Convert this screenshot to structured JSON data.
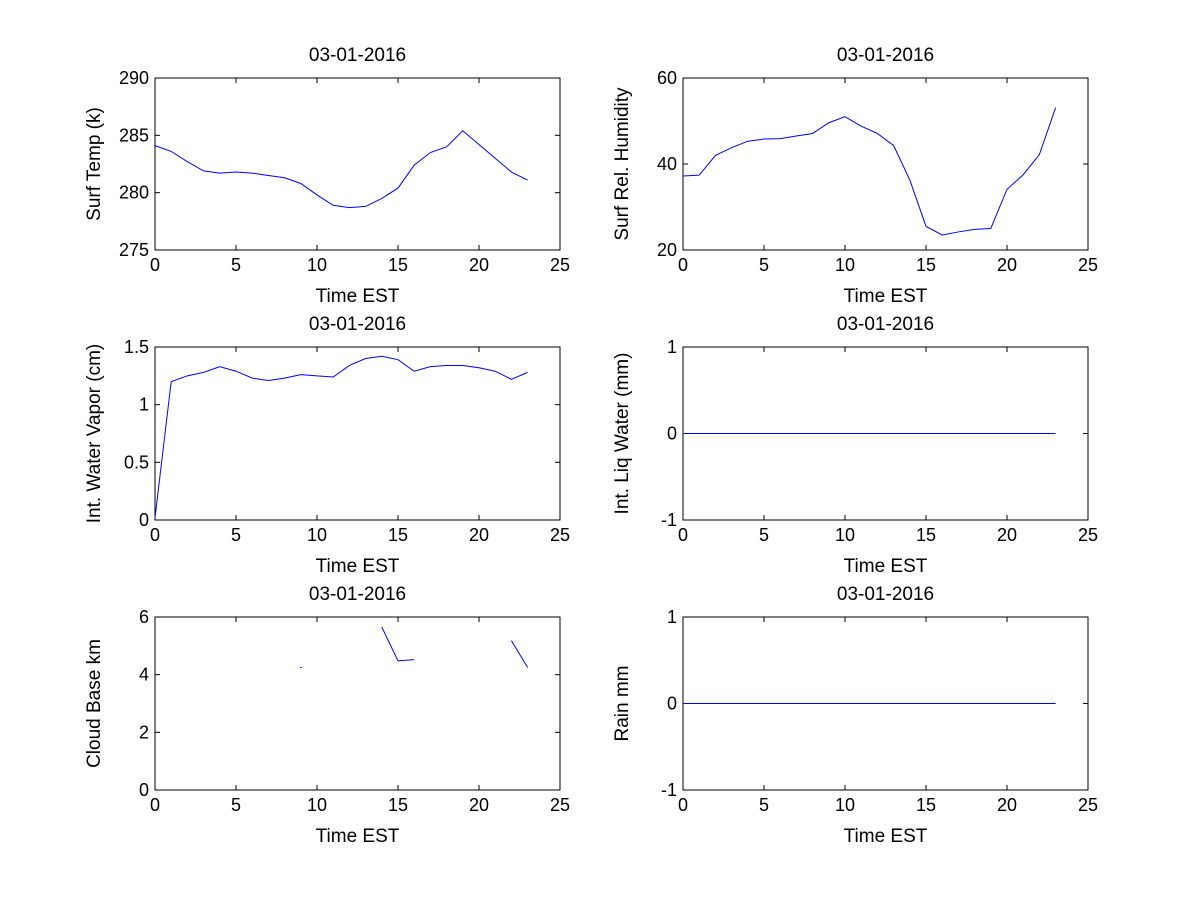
{
  "colors": {
    "line": "#0000ff",
    "axis": "#000000",
    "background": "#ffffff"
  },
  "chart_data": [
    {
      "type": "line",
      "title": "03-01-2016",
      "xlabel": "Time EST",
      "ylabel": "Surf Temp (k)",
      "xlim": [
        0,
        25
      ],
      "ylim": [
        275,
        290
      ],
      "xticks": [
        0,
        5,
        10,
        15,
        20,
        25
      ],
      "yticks": [
        275,
        280,
        285,
        290
      ],
      "grid": false,
      "series": [
        {
          "name": "Surf Temp",
          "x": [
            0,
            1,
            2,
            3,
            4,
            5,
            6,
            7,
            8,
            9,
            10,
            11,
            12,
            13,
            14,
            15,
            16,
            17,
            18,
            19,
            20,
            21,
            22,
            23
          ],
          "values": [
            284.1,
            283.6,
            282.7,
            281.9,
            281.7,
            281.8,
            281.7,
            281.5,
            281.3,
            280.8,
            279.8,
            278.9,
            278.7,
            278.8,
            279.5,
            280.4,
            282.4,
            283.5,
            284.0,
            285.4,
            284.2,
            283.0,
            281.8,
            281.1
          ]
        }
      ]
    },
    {
      "type": "line",
      "title": "03-01-2016",
      "xlabel": "Time EST",
      "ylabel": "Surf Rel. Humidity",
      "xlim": [
        0,
        25
      ],
      "ylim": [
        20,
        60
      ],
      "xticks": [
        0,
        5,
        10,
        15,
        20,
        25
      ],
      "yticks": [
        20,
        40,
        60
      ],
      "grid": false,
      "series": [
        {
          "name": "Surf Rel. Humidity",
          "x": [
            0,
            1,
            2,
            3,
            4,
            5,
            6,
            7,
            8,
            9,
            10,
            11,
            12,
            13,
            14,
            15,
            16,
            17,
            18,
            19,
            20,
            21,
            22,
            23
          ],
          "values": [
            37.2,
            37.4,
            42.0,
            43.8,
            45.3,
            45.8,
            45.9,
            46.5,
            47.1,
            49.6,
            51.0,
            48.8,
            47.1,
            44.3,
            36.3,
            25.5,
            23.5,
            24.2,
            24.8,
            25.0,
            34.1,
            37.5,
            42.2,
            53.1
          ]
        }
      ]
    },
    {
      "type": "line",
      "title": "03-01-2016",
      "xlabel": "Time EST",
      "ylabel": "Int. Water Vapor (cm)",
      "xlim": [
        0,
        25
      ],
      "ylim": [
        0,
        1.5
      ],
      "xticks": [
        0,
        5,
        10,
        15,
        20,
        25
      ],
      "yticks": [
        0,
        0.5,
        1,
        1.5
      ],
      "grid": false,
      "series": [
        {
          "name": "Int. Water Vapor",
          "x": [
            0,
            1,
            2,
            3,
            4,
            5,
            6,
            7,
            8,
            9,
            10,
            11,
            12,
            13,
            14,
            15,
            16,
            17,
            18,
            19,
            20,
            21,
            22,
            23
          ],
          "values": [
            0.02,
            1.2,
            1.25,
            1.28,
            1.33,
            1.29,
            1.23,
            1.21,
            1.23,
            1.26,
            1.25,
            1.24,
            1.34,
            1.4,
            1.42,
            1.39,
            1.29,
            1.33,
            1.34,
            1.34,
            1.32,
            1.29,
            1.22,
            1.28
          ]
        }
      ]
    },
    {
      "type": "line",
      "title": "03-01-2016",
      "xlabel": "Time EST",
      "ylabel": "Int. Liq Water (mm)",
      "xlim": [
        0,
        25
      ],
      "ylim": [
        -1,
        1
      ],
      "xticks": [
        0,
        5,
        10,
        15,
        20,
        25
      ],
      "yticks": [
        -1,
        0,
        1
      ],
      "grid": false,
      "series": [
        {
          "name": "Int. Liq Water",
          "x": [
            0,
            1,
            2,
            3,
            4,
            5,
            6,
            7,
            8,
            9,
            10,
            11,
            12,
            13,
            14,
            15,
            16,
            17,
            18,
            19,
            20,
            21,
            22,
            23
          ],
          "values": [
            0,
            0,
            0,
            0,
            0,
            0,
            0,
            0,
            0,
            0,
            0,
            0,
            0,
            0,
            0,
            0,
            0,
            0,
            0,
            0,
            0,
            0,
            0,
            0
          ]
        }
      ]
    },
    {
      "type": "line",
      "title": "03-01-2016",
      "xlabel": "Time EST",
      "ylabel": "Cloud Base km",
      "xlim": [
        0,
        25
      ],
      "ylim": [
        0,
        6
      ],
      "xticks": [
        0,
        5,
        10,
        15,
        20,
        25
      ],
      "yticks": [
        0,
        2,
        4,
        6
      ],
      "grid": false,
      "series": [
        {
          "name": "Cloud Base",
          "x": [
            0,
            1,
            2,
            3,
            4,
            5,
            6,
            7,
            8,
            9,
            10,
            11,
            12,
            13,
            14,
            15,
            16,
            17,
            18,
            19,
            20,
            21,
            22,
            23
          ],
          "values": [
            null,
            null,
            null,
            null,
            null,
            null,
            null,
            null,
            null,
            4.25,
            null,
            null,
            null,
            null,
            5.65,
            4.48,
            4.52,
            null,
            null,
            null,
            null,
            null,
            5.18,
            4.25
          ]
        }
      ]
    },
    {
      "type": "line",
      "title": "03-01-2016",
      "xlabel": "Time EST",
      "ylabel": "Rain mm",
      "xlim": [
        0,
        25
      ],
      "ylim": [
        -1,
        1
      ],
      "xticks": [
        0,
        5,
        10,
        15,
        20,
        25
      ],
      "yticks": [
        -1,
        0,
        1
      ],
      "grid": false,
      "series": [
        {
          "name": "Rain",
          "x": [
            0,
            1,
            2,
            3,
            4,
            5,
            6,
            7,
            8,
            9,
            10,
            11,
            12,
            13,
            14,
            15,
            16,
            17,
            18,
            19,
            20,
            21,
            22,
            23
          ],
          "values": [
            0,
            0,
            0,
            0,
            0,
            0,
            0,
            0,
            0,
            0,
            0,
            0,
            0,
            0,
            0,
            0,
            0,
            0,
            0,
            0,
            0,
            0,
            0,
            0
          ]
        }
      ]
    }
  ]
}
